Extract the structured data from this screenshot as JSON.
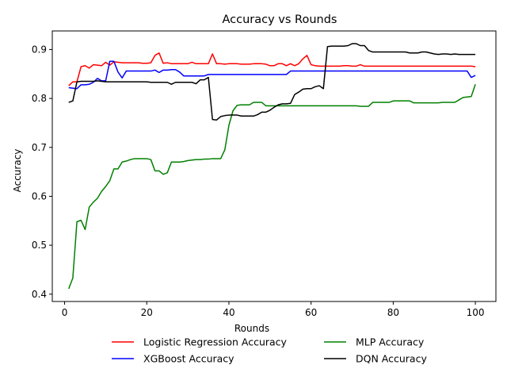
{
  "chart_data": {
    "type": "line",
    "title": "Accuracy vs Rounds",
    "xlabel": "Rounds",
    "ylabel": "Accuracy",
    "xlim": [
      -3,
      105
    ],
    "ylim": [
      0.385,
      0.938
    ],
    "xticks": [
      0,
      20,
      40,
      60,
      80,
      100
    ],
    "yticks": [
      0.4,
      0.5,
      0.6,
      0.7,
      0.8,
      0.9
    ],
    "xtick_labels": [
      "0",
      "20",
      "40",
      "60",
      "80",
      "100"
    ],
    "ytick_labels": [
      "0.4",
      "0.5",
      "0.6",
      "0.7",
      "0.8",
      "0.9"
    ],
    "grid": false,
    "legend_position": "below plot",
    "series": [
      {
        "name": "Logistic Regression Accuracy",
        "color": "#ff0000",
        "x": [
          1,
          2,
          3,
          4,
          5,
          6,
          7,
          8,
          9,
          10,
          11,
          12,
          13,
          14,
          15,
          16,
          17,
          18,
          19,
          20,
          21,
          22,
          23,
          24,
          25,
          26,
          27,
          28,
          29,
          30,
          31,
          32,
          33,
          34,
          35,
          36,
          37,
          38,
          39,
          40,
          41,
          42,
          43,
          44,
          45,
          46,
          47,
          48,
          49,
          50,
          51,
          52,
          53,
          54,
          55,
          56,
          57,
          58,
          59,
          60,
          61,
          62,
          63,
          64,
          65,
          66,
          67,
          68,
          69,
          70,
          71,
          72,
          73,
          74,
          75,
          76,
          77,
          78,
          79,
          80,
          81,
          82,
          83,
          84,
          85,
          86,
          87,
          88,
          89,
          90,
          91,
          92,
          93,
          94,
          95,
          96,
          97,
          98,
          99,
          100
        ],
        "y": [
          0.826,
          0.834,
          0.834,
          0.865,
          0.867,
          0.862,
          0.869,
          0.868,
          0.867,
          0.874,
          0.868,
          0.875,
          0.874,
          0.873,
          0.873,
          0.873,
          0.873,
          0.873,
          0.872,
          0.872,
          0.873,
          0.888,
          0.893,
          0.872,
          0.873,
          0.871,
          0.871,
          0.871,
          0.871,
          0.871,
          0.874,
          0.871,
          0.871,
          0.871,
          0.871,
          0.891,
          0.871,
          0.871,
          0.87,
          0.871,
          0.871,
          0.871,
          0.87,
          0.87,
          0.87,
          0.871,
          0.871,
          0.871,
          0.87,
          0.867,
          0.867,
          0.871,
          0.871,
          0.867,
          0.871,
          0.867,
          0.871,
          0.881,
          0.888,
          0.869,
          0.867,
          0.866,
          0.866,
          0.866,
          0.866,
          0.866,
          0.866,
          0.867,
          0.867,
          0.866,
          0.866,
          0.869,
          0.866,
          0.866,
          0.866,
          0.866,
          0.866,
          0.866,
          0.866,
          0.866,
          0.866,
          0.866,
          0.866,
          0.866,
          0.866,
          0.866,
          0.866,
          0.866,
          0.866,
          0.866,
          0.866,
          0.866,
          0.866,
          0.866,
          0.866,
          0.866,
          0.866,
          0.866,
          0.866,
          0.865
        ]
      },
      {
        "name": "XGBoost Accuracy",
        "color": "#0000ff",
        "x": [
          1,
          2,
          3,
          4,
          5,
          6,
          7,
          8,
          9,
          10,
          11,
          12,
          13,
          14,
          15,
          16,
          17,
          18,
          19,
          20,
          21,
          22,
          23,
          24,
          25,
          26,
          27,
          28,
          29,
          30,
          31,
          32,
          33,
          34,
          35,
          36,
          37,
          38,
          39,
          40,
          41,
          42,
          43,
          44,
          45,
          46,
          47,
          48,
          49,
          50,
          51,
          52,
          53,
          54,
          55,
          56,
          57,
          58,
          59,
          60,
          61,
          62,
          63,
          64,
          65,
          66,
          67,
          68,
          69,
          70,
          71,
          72,
          73,
          74,
          75,
          76,
          77,
          78,
          79,
          80,
          81,
          82,
          83,
          84,
          85,
          86,
          87,
          88,
          89,
          90,
          91,
          92,
          93,
          94,
          95,
          96,
          97,
          98,
          99,
          100
        ],
        "y": [
          0.822,
          0.821,
          0.82,
          0.828,
          0.828,
          0.829,
          0.833,
          0.841,
          0.836,
          0.836,
          0.876,
          0.876,
          0.854,
          0.842,
          0.856,
          0.856,
          0.856,
          0.856,
          0.856,
          0.856,
          0.856,
          0.858,
          0.853,
          0.858,
          0.858,
          0.859,
          0.859,
          0.854,
          0.846,
          0.846,
          0.846,
          0.846,
          0.846,
          0.846,
          0.849,
          0.849,
          0.849,
          0.849,
          0.849,
          0.849,
          0.849,
          0.849,
          0.849,
          0.849,
          0.849,
          0.849,
          0.849,
          0.849,
          0.849,
          0.849,
          0.849,
          0.849,
          0.849,
          0.849,
          0.856,
          0.856,
          0.856,
          0.856,
          0.856,
          0.856,
          0.856,
          0.856,
          0.856,
          0.856,
          0.856,
          0.856,
          0.856,
          0.856,
          0.856,
          0.856,
          0.856,
          0.856,
          0.856,
          0.856,
          0.856,
          0.856,
          0.856,
          0.856,
          0.856,
          0.856,
          0.856,
          0.856,
          0.856,
          0.856,
          0.856,
          0.856,
          0.856,
          0.856,
          0.856,
          0.856,
          0.856,
          0.856,
          0.856,
          0.856,
          0.856,
          0.856,
          0.856,
          0.856,
          0.843,
          0.847
        ]
      },
      {
        "name": "MLP Accuracy",
        "color": "#008000",
        "x": [
          1,
          2,
          3,
          4,
          5,
          6,
          7,
          8,
          9,
          10,
          11,
          12,
          13,
          14,
          15,
          16,
          17,
          18,
          19,
          20,
          21,
          22,
          23,
          24,
          25,
          26,
          27,
          28,
          29,
          30,
          31,
          32,
          33,
          34,
          35,
          36,
          37,
          38,
          39,
          40,
          41,
          42,
          43,
          44,
          45,
          46,
          47,
          48,
          49,
          50,
          51,
          52,
          53,
          54,
          55,
          56,
          57,
          58,
          59,
          60,
          61,
          62,
          63,
          64,
          65,
          66,
          67,
          68,
          69,
          70,
          71,
          72,
          73,
          74,
          75,
          76,
          77,
          78,
          79,
          80,
          81,
          82,
          83,
          84,
          85,
          86,
          87,
          88,
          89,
          90,
          91,
          92,
          93,
          94,
          95,
          96,
          97,
          98,
          99,
          100
        ],
        "y": [
          0.411,
          0.433,
          0.548,
          0.551,
          0.532,
          0.578,
          0.588,
          0.596,
          0.61,
          0.62,
          0.632,
          0.656,
          0.656,
          0.67,
          0.672,
          0.675,
          0.677,
          0.677,
          0.677,
          0.677,
          0.675,
          0.652,
          0.652,
          0.645,
          0.648,
          0.67,
          0.67,
          0.67,
          0.671,
          0.673,
          0.674,
          0.675,
          0.675,
          0.676,
          0.676,
          0.677,
          0.677,
          0.677,
          0.695,
          0.745,
          0.775,
          0.786,
          0.787,
          0.787,
          0.787,
          0.792,
          0.792,
          0.792,
          0.785,
          0.785,
          0.785,
          0.785,
          0.785,
          0.785,
          0.785,
          0.785,
          0.785,
          0.785,
          0.785,
          0.785,
          0.785,
          0.785,
          0.785,
          0.785,
          0.785,
          0.785,
          0.785,
          0.785,
          0.785,
          0.785,
          0.785,
          0.784,
          0.784,
          0.784,
          0.792,
          0.792,
          0.792,
          0.792,
          0.792,
          0.795,
          0.795,
          0.795,
          0.795,
          0.795,
          0.791,
          0.791,
          0.791,
          0.791,
          0.791,
          0.791,
          0.791,
          0.792,
          0.792,
          0.792,
          0.792,
          0.797,
          0.802,
          0.803,
          0.804,
          0.829
        ]
      },
      {
        "name": "DQN Accuracy",
        "color": "#000000",
        "x": [
          1,
          2,
          3,
          4,
          5,
          6,
          7,
          8,
          9,
          10,
          11,
          12,
          13,
          14,
          15,
          16,
          17,
          18,
          19,
          20,
          21,
          22,
          23,
          24,
          25,
          26,
          27,
          28,
          29,
          30,
          31,
          32,
          33,
          34,
          35,
          36,
          37,
          38,
          39,
          40,
          41,
          42,
          43,
          44,
          45,
          46,
          47,
          48,
          49,
          50,
          51,
          52,
          53,
          54,
          55,
          56,
          57,
          58,
          59,
          60,
          61,
          62,
          63,
          64,
          65,
          66,
          67,
          68,
          69,
          70,
          71,
          72,
          73,
          74,
          75,
          76,
          77,
          78,
          79,
          80,
          81,
          82,
          83,
          84,
          85,
          86,
          87,
          88,
          89,
          90,
          91,
          92,
          93,
          94,
          95,
          96,
          97,
          98,
          99,
          100
        ],
        "y": [
          0.792,
          0.795,
          0.834,
          0.835,
          0.835,
          0.835,
          0.835,
          0.836,
          0.835,
          0.834,
          0.834,
          0.834,
          0.834,
          0.834,
          0.834,
          0.834,
          0.834,
          0.834,
          0.834,
          0.834,
          0.833,
          0.833,
          0.833,
          0.833,
          0.833,
          0.829,
          0.833,
          0.833,
          0.833,
          0.833,
          0.833,
          0.83,
          0.838,
          0.838,
          0.843,
          0.757,
          0.756,
          0.763,
          0.765,
          0.766,
          0.766,
          0.766,
          0.764,
          0.764,
          0.764,
          0.764,
          0.767,
          0.772,
          0.772,
          0.776,
          0.782,
          0.787,
          0.789,
          0.789,
          0.79,
          0.808,
          0.813,
          0.819,
          0.82,
          0.82,
          0.824,
          0.826,
          0.82,
          0.906,
          0.907,
          0.907,
          0.907,
          0.907,
          0.908,
          0.912,
          0.912,
          0.908,
          0.908,
          0.898,
          0.895,
          0.895,
          0.895,
          0.895,
          0.895,
          0.895,
          0.895,
          0.895,
          0.895,
          0.893,
          0.893,
          0.893,
          0.895,
          0.895,
          0.893,
          0.891,
          0.89,
          0.891,
          0.891,
          0.89,
          0.891,
          0.89,
          0.89,
          0.89,
          0.89,
          0.89
        ]
      }
    ]
  }
}
